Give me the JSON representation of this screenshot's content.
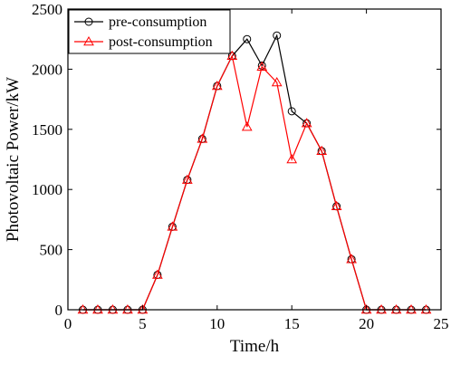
{
  "chart_data": {
    "type": "line",
    "xlabel": "Time/h",
    "ylabel": "Photovoltaic Power/kW",
    "xlim": [
      0,
      25
    ],
    "ylim": [
      0,
      2500
    ],
    "xticks": [
      0,
      5,
      10,
      15,
      20,
      25
    ],
    "yticks": [
      0,
      500,
      1000,
      1500,
      2000,
      2500
    ],
    "grid": false,
    "legend_position": "top-left",
    "series": [
      {
        "name": "pre-consumption",
        "color": "#000000",
        "marker": "circle",
        "x": [
          1,
          2,
          3,
          4,
          5,
          6,
          7,
          8,
          9,
          10,
          11,
          12,
          13,
          14,
          15,
          16,
          17,
          18,
          19,
          20,
          21,
          22,
          23,
          24
        ],
        "values": [
          0,
          0,
          0,
          0,
          0,
          290,
          690,
          1080,
          1420,
          1860,
          2110,
          2250,
          2030,
          2280,
          1650,
          1550,
          1320,
          860,
          420,
          0,
          0,
          0,
          0,
          0
        ]
      },
      {
        "name": "post-consumption",
        "color": "#ff0000",
        "marker": "triangle",
        "x": [
          1,
          2,
          3,
          4,
          5,
          6,
          7,
          8,
          9,
          10,
          11,
          12,
          13,
          14,
          15,
          16,
          17,
          18,
          19,
          20,
          21,
          22,
          23,
          24
        ],
        "values": [
          0,
          0,
          0,
          0,
          0,
          290,
          690,
          1080,
          1420,
          1860,
          2110,
          1520,
          2020,
          1890,
          1250,
          1550,
          1320,
          860,
          420,
          0,
          0,
          0,
          0,
          0
        ]
      }
    ]
  }
}
